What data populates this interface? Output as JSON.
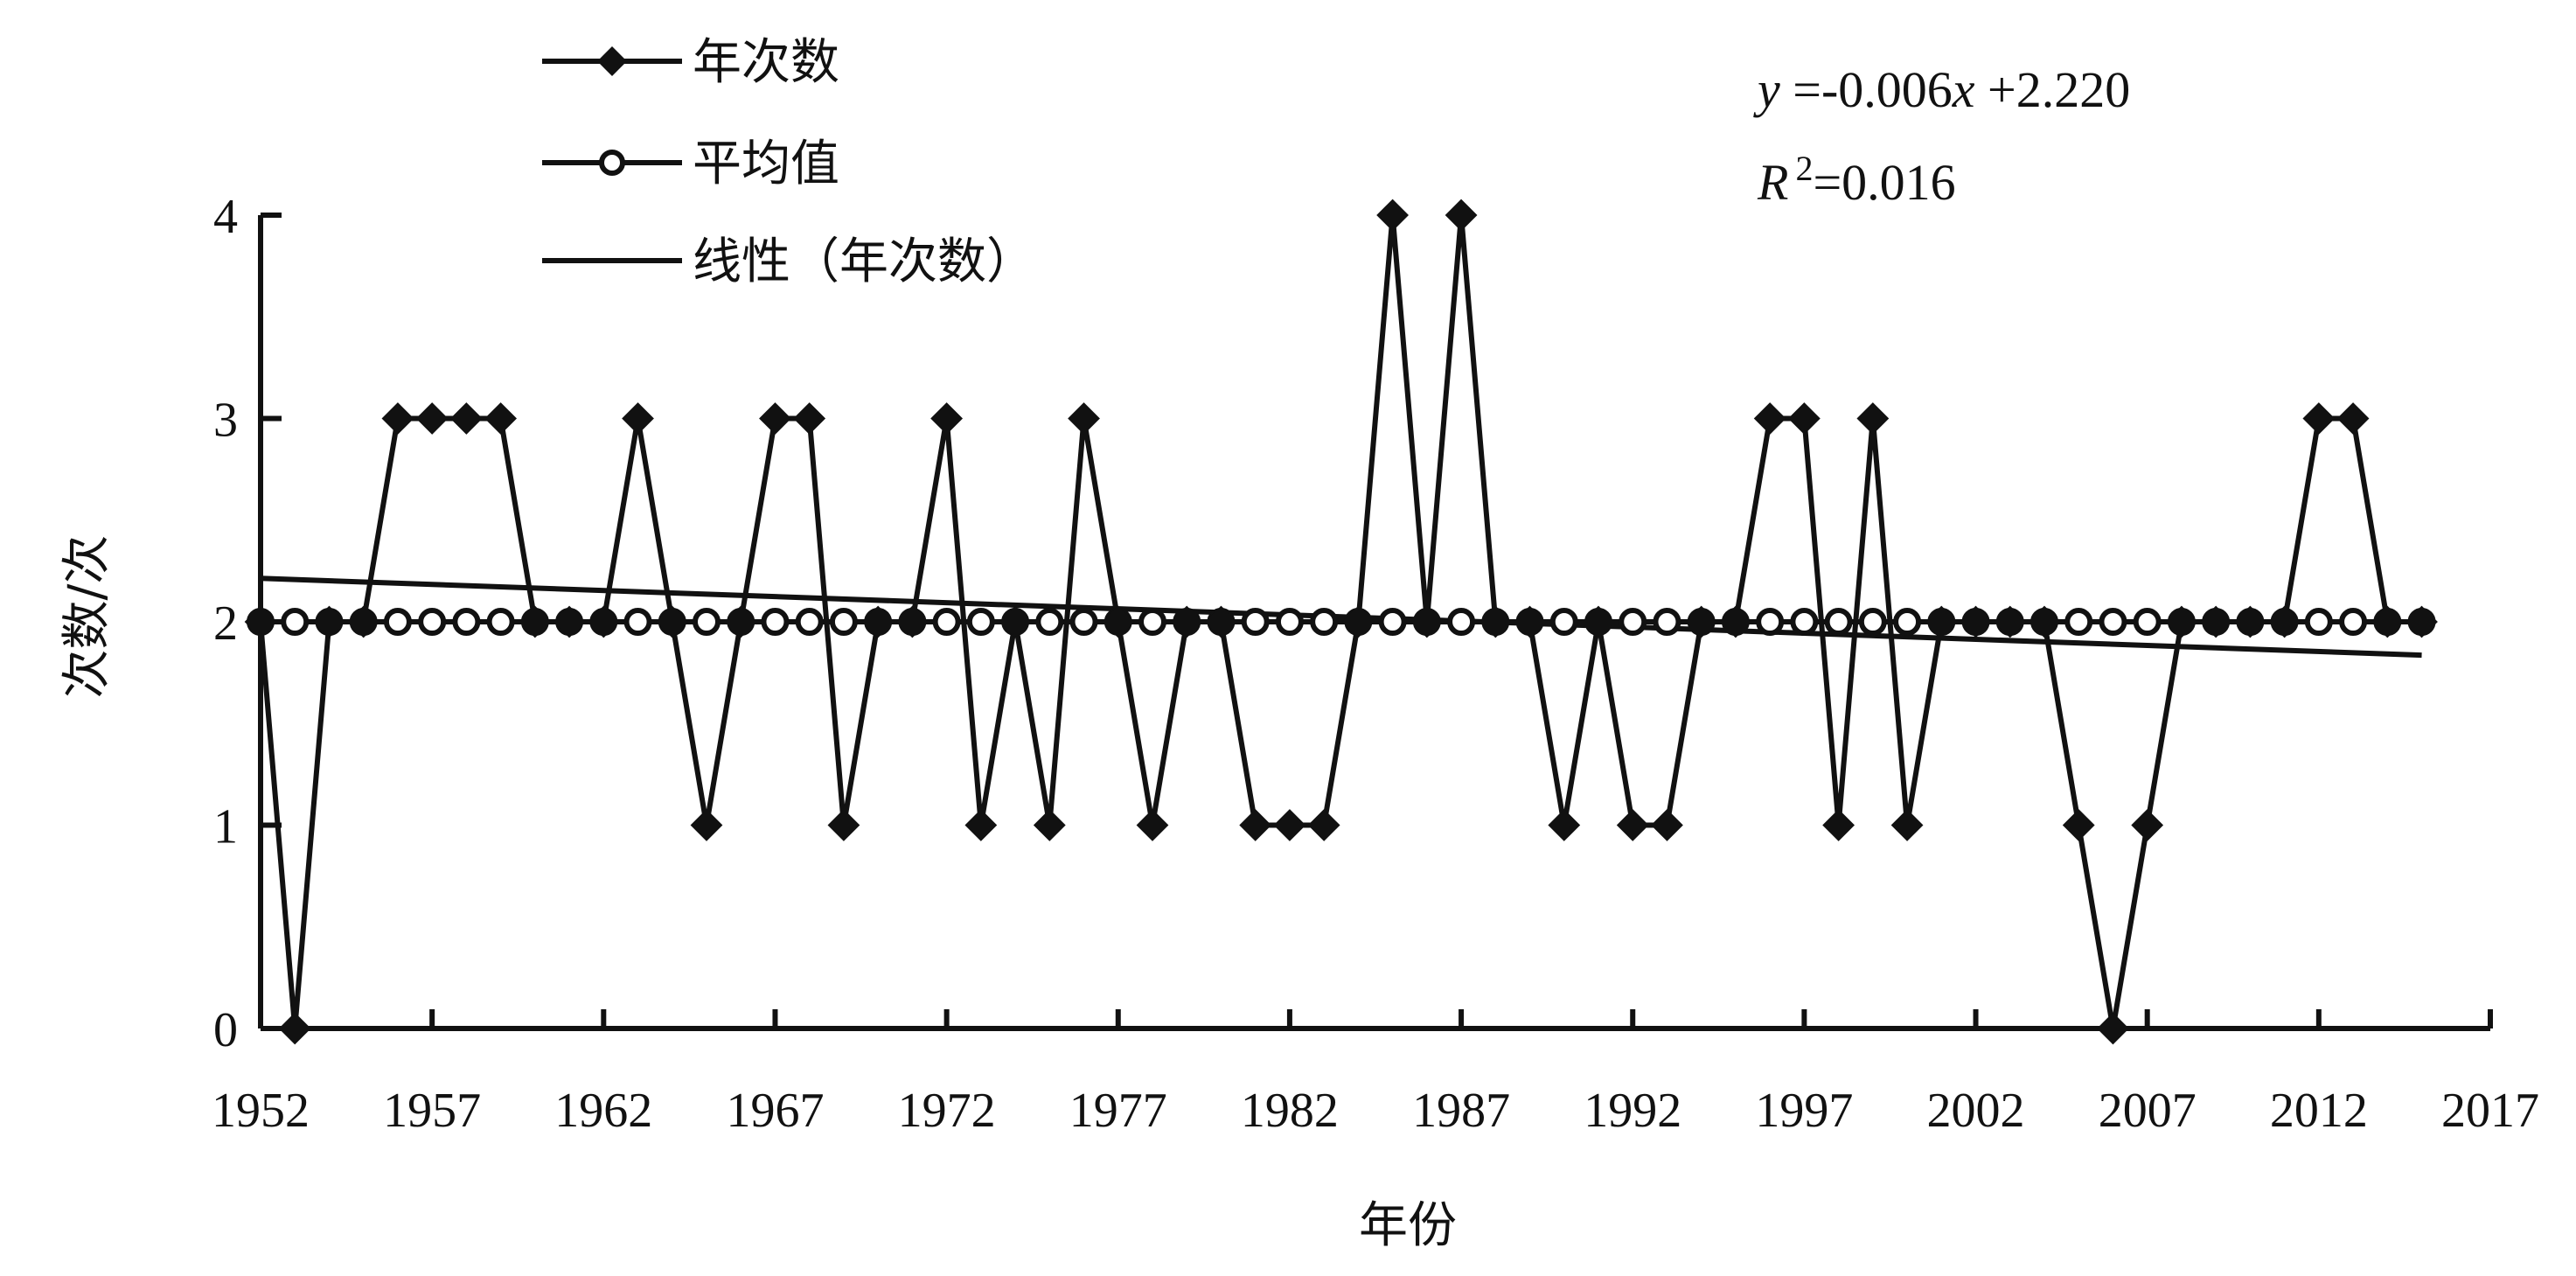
{
  "chart_data": {
    "type": "line",
    "xlabel": "年份",
    "ylabel": "次数/次",
    "xlim": [
      1952,
      2017
    ],
    "ylim": [
      0,
      4
    ],
    "x_ticks": [
      "1952",
      "1957",
      "1962",
      "1967",
      "1972",
      "1977",
      "1982",
      "1987",
      "1992",
      "1997",
      "2002",
      "2007",
      "2012",
      "2017"
    ],
    "y_ticks": [
      "0",
      "1",
      "2",
      "3",
      "4"
    ],
    "grid": false,
    "legend_position": "top-left",
    "x": [
      1952,
      1953,
      1954,
      1955,
      1956,
      1957,
      1958,
      1959,
      1960,
      1961,
      1962,
      1963,
      1964,
      1965,
      1966,
      1967,
      1968,
      1969,
      1970,
      1971,
      1972,
      1973,
      1974,
      1975,
      1976,
      1977,
      1978,
      1979,
      1980,
      1981,
      1982,
      1983,
      1984,
      1985,
      1986,
      1987,
      1988,
      1989,
      1990,
      1991,
      1992,
      1993,
      1994,
      1995,
      1996,
      1997,
      1998,
      1999,
      2000,
      2001,
      2002,
      2003,
      2004,
      2005,
      2006,
      2007,
      2008,
      2009,
      2010,
      2011,
      2012,
      2013,
      2014,
      2015
    ],
    "series": [
      {
        "name": "年次数",
        "marker": "filled-diamond",
        "values": [
          2,
          0,
          2,
          2,
          3,
          3,
          3,
          3,
          2,
          2,
          2,
          3,
          2,
          1,
          2,
          3,
          3,
          1,
          2,
          2,
          3,
          1,
          2,
          1,
          3,
          2,
          1,
          2,
          2,
          1,
          1,
          1,
          2,
          4,
          2,
          4,
          2,
          2,
          1,
          2,
          1,
          1,
          2,
          2,
          3,
          3,
          1,
          3,
          1,
          2,
          2,
          2,
          2,
          1,
          0,
          1,
          2,
          2,
          2,
          2,
          3,
          3,
          2,
          2
        ]
      },
      {
        "name": "平均值",
        "marker": "open-circle",
        "values": [
          2,
          2,
          2,
          2,
          2,
          2,
          2,
          2,
          2,
          2,
          2,
          2,
          2,
          2,
          2,
          2,
          2,
          2,
          2,
          2,
          2,
          2,
          2,
          2,
          2,
          2,
          2,
          2,
          2,
          2,
          2,
          2,
          2,
          2,
          2,
          2,
          2,
          2,
          2,
          2,
          2,
          2,
          2,
          2,
          2,
          2,
          2,
          2,
          2,
          2,
          2,
          2,
          2,
          2,
          2,
          2,
          2,
          2,
          2,
          2,
          2,
          2,
          2,
          2
        ]
      },
      {
        "name": "线性（年次数）",
        "type": "trendline",
        "slope": -0.006,
        "intercept": 2.22
      }
    ],
    "annotations": {
      "equation_y": "y",
      "equation_rest": " =-0.006",
      "equation_x": "x",
      "equation_tail": " +2.220",
      "r2_label": "R",
      "r2_sup": "2",
      "r2_value": "=0.016"
    },
    "colors": {
      "line": "#111111",
      "background": "#ffffff"
    }
  }
}
